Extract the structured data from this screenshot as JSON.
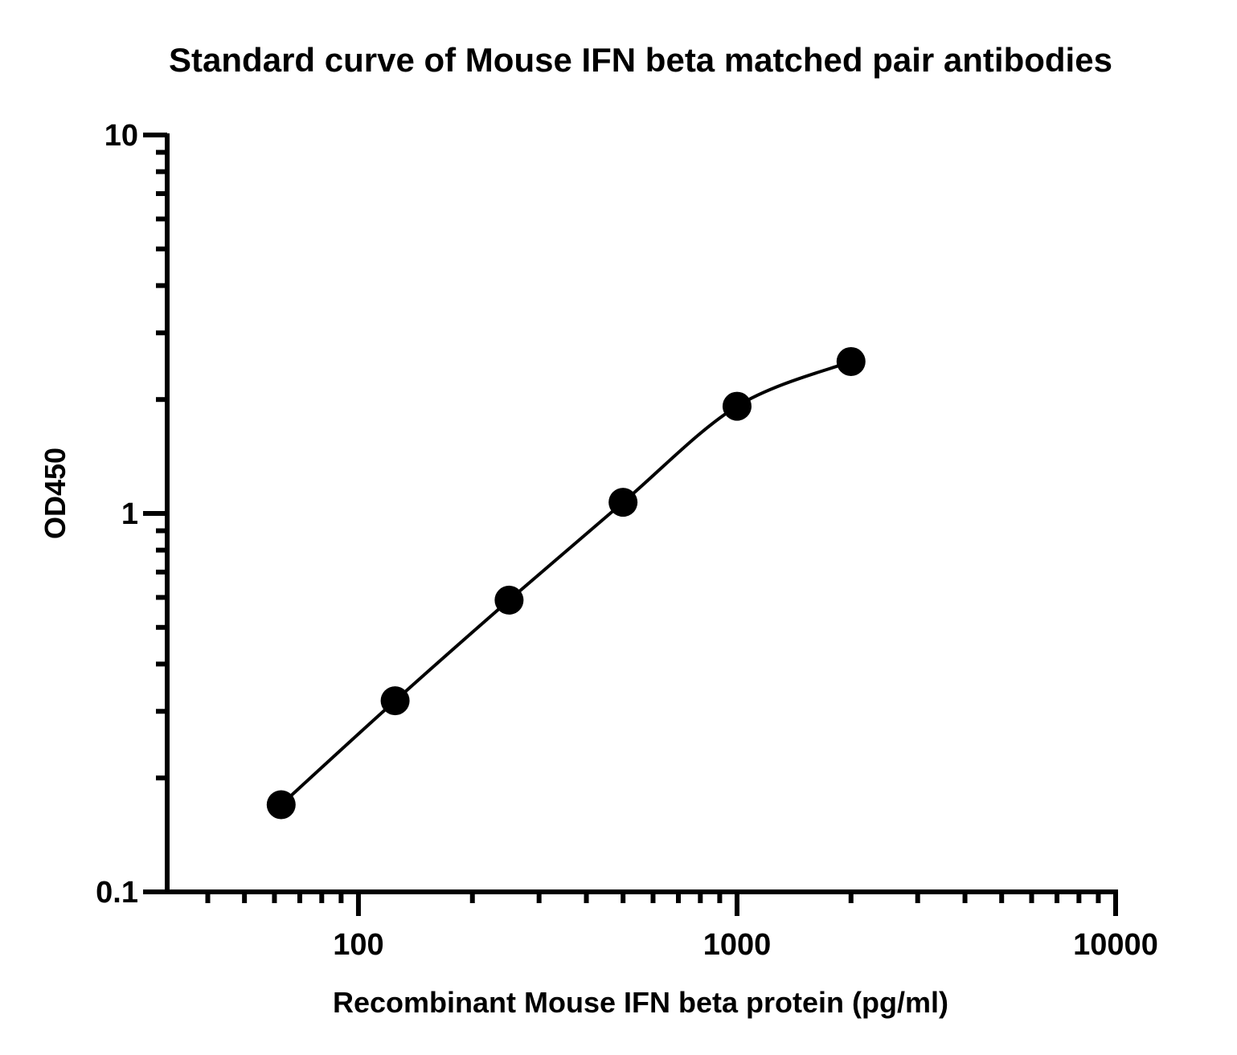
{
  "chart_data": {
    "type": "scatter",
    "title": "Standard curve of Mouse IFN beta matched pair antibodies",
    "xlabel": "Recombinant Mouse IFN beta protein (pg/ml)",
    "ylabel": "OD450",
    "xscale": "log",
    "yscale": "log",
    "xlim": [
      31.25,
      10000
    ],
    "ylim": [
      0.1,
      10
    ],
    "x_tick_labels": [
      "100",
      "1000",
      "10000"
    ],
    "y_tick_labels": [
      "0.1",
      "1",
      "10"
    ],
    "grid": false,
    "legend": "none",
    "fit_curve": true,
    "series": [
      {
        "x": [
          62.5,
          125,
          250,
          500,
          1000,
          2000
        ],
        "y": [
          0.17,
          0.32,
          0.59,
          1.07,
          1.92,
          2.52
        ]
      }
    ],
    "colors": {
      "points": "#000000",
      "curve": "#000000",
      "axes": "#000000"
    }
  }
}
